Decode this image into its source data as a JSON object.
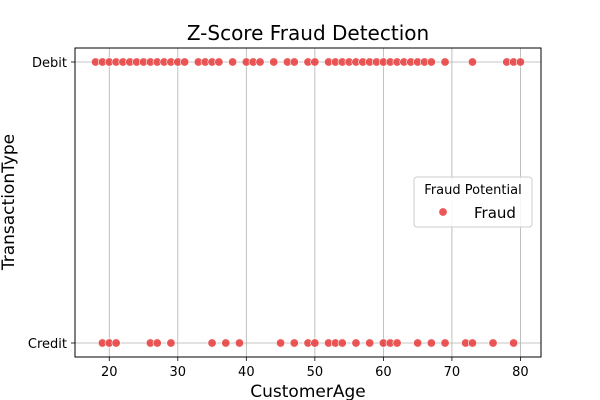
{
  "chart_data": {
    "type": "scatter",
    "title": "Z-Score Fraud Detection",
    "xlabel": "CustomerAge",
    "ylabel": "TransactionType",
    "xlim": [
      15,
      83
    ],
    "x_ticks": [
      20,
      30,
      40,
      50,
      60,
      70,
      80
    ],
    "y_categories": [
      "Credit",
      "Debit"
    ],
    "grid": true,
    "legend": {
      "title": "Fraud Potential",
      "placement": "right",
      "entries": [
        "Fraud"
      ]
    },
    "series": [
      {
        "name": "Fraud",
        "color": "#e83a3a",
        "points": [
          {
            "x": 18,
            "y": "Debit"
          },
          {
            "x": 19,
            "y": "Debit"
          },
          {
            "x": 20,
            "y": "Debit"
          },
          {
            "x": 21,
            "y": "Debit"
          },
          {
            "x": 22,
            "y": "Debit"
          },
          {
            "x": 23,
            "y": "Debit"
          },
          {
            "x": 24,
            "y": "Debit"
          },
          {
            "x": 25,
            "y": "Debit"
          },
          {
            "x": 26,
            "y": "Debit"
          },
          {
            "x": 27,
            "y": "Debit"
          },
          {
            "x": 28,
            "y": "Debit"
          },
          {
            "x": 29,
            "y": "Debit"
          },
          {
            "x": 30,
            "y": "Debit"
          },
          {
            "x": 31,
            "y": "Debit"
          },
          {
            "x": 33,
            "y": "Debit"
          },
          {
            "x": 34,
            "y": "Debit"
          },
          {
            "x": 35,
            "y": "Debit"
          },
          {
            "x": 36,
            "y": "Debit"
          },
          {
            "x": 38,
            "y": "Debit"
          },
          {
            "x": 40,
            "y": "Debit"
          },
          {
            "x": 41,
            "y": "Debit"
          },
          {
            "x": 42,
            "y": "Debit"
          },
          {
            "x": 44,
            "y": "Debit"
          },
          {
            "x": 46,
            "y": "Debit"
          },
          {
            "x": 47,
            "y": "Debit"
          },
          {
            "x": 49,
            "y": "Debit"
          },
          {
            "x": 50,
            "y": "Debit"
          },
          {
            "x": 52,
            "y": "Debit"
          },
          {
            "x": 53,
            "y": "Debit"
          },
          {
            "x": 54,
            "y": "Debit"
          },
          {
            "x": 55,
            "y": "Debit"
          },
          {
            "x": 56,
            "y": "Debit"
          },
          {
            "x": 57,
            "y": "Debit"
          },
          {
            "x": 58,
            "y": "Debit"
          },
          {
            "x": 59,
            "y": "Debit"
          },
          {
            "x": 60,
            "y": "Debit"
          },
          {
            "x": 61,
            "y": "Debit"
          },
          {
            "x": 62,
            "y": "Debit"
          },
          {
            "x": 63,
            "y": "Debit"
          },
          {
            "x": 64,
            "y": "Debit"
          },
          {
            "x": 65,
            "y": "Debit"
          },
          {
            "x": 66,
            "y": "Debit"
          },
          {
            "x": 67,
            "y": "Debit"
          },
          {
            "x": 69,
            "y": "Debit"
          },
          {
            "x": 73,
            "y": "Debit"
          },
          {
            "x": 78,
            "y": "Debit"
          },
          {
            "x": 79,
            "y": "Debit"
          },
          {
            "x": 80,
            "y": "Debit"
          },
          {
            "x": 19,
            "y": "Credit"
          },
          {
            "x": 20,
            "y": "Credit"
          },
          {
            "x": 21,
            "y": "Credit"
          },
          {
            "x": 26,
            "y": "Credit"
          },
          {
            "x": 27,
            "y": "Credit"
          },
          {
            "x": 29,
            "y": "Credit"
          },
          {
            "x": 35,
            "y": "Credit"
          },
          {
            "x": 37,
            "y": "Credit"
          },
          {
            "x": 39,
            "y": "Credit"
          },
          {
            "x": 45,
            "y": "Credit"
          },
          {
            "x": 47,
            "y": "Credit"
          },
          {
            "x": 49,
            "y": "Credit"
          },
          {
            "x": 50,
            "y": "Credit"
          },
          {
            "x": 52,
            "y": "Credit"
          },
          {
            "x": 53,
            "y": "Credit"
          },
          {
            "x": 54,
            "y": "Credit"
          },
          {
            "x": 56,
            "y": "Credit"
          },
          {
            "x": 58,
            "y": "Credit"
          },
          {
            "x": 60,
            "y": "Credit"
          },
          {
            "x": 61,
            "y": "Credit"
          },
          {
            "x": 62,
            "y": "Credit"
          },
          {
            "x": 65,
            "y": "Credit"
          },
          {
            "x": 67,
            "y": "Credit"
          },
          {
            "x": 69,
            "y": "Credit"
          },
          {
            "x": 72,
            "y": "Credit"
          },
          {
            "x": 73,
            "y": "Credit"
          },
          {
            "x": 76,
            "y": "Credit"
          },
          {
            "x": 79,
            "y": "Credit"
          }
        ]
      }
    ]
  }
}
